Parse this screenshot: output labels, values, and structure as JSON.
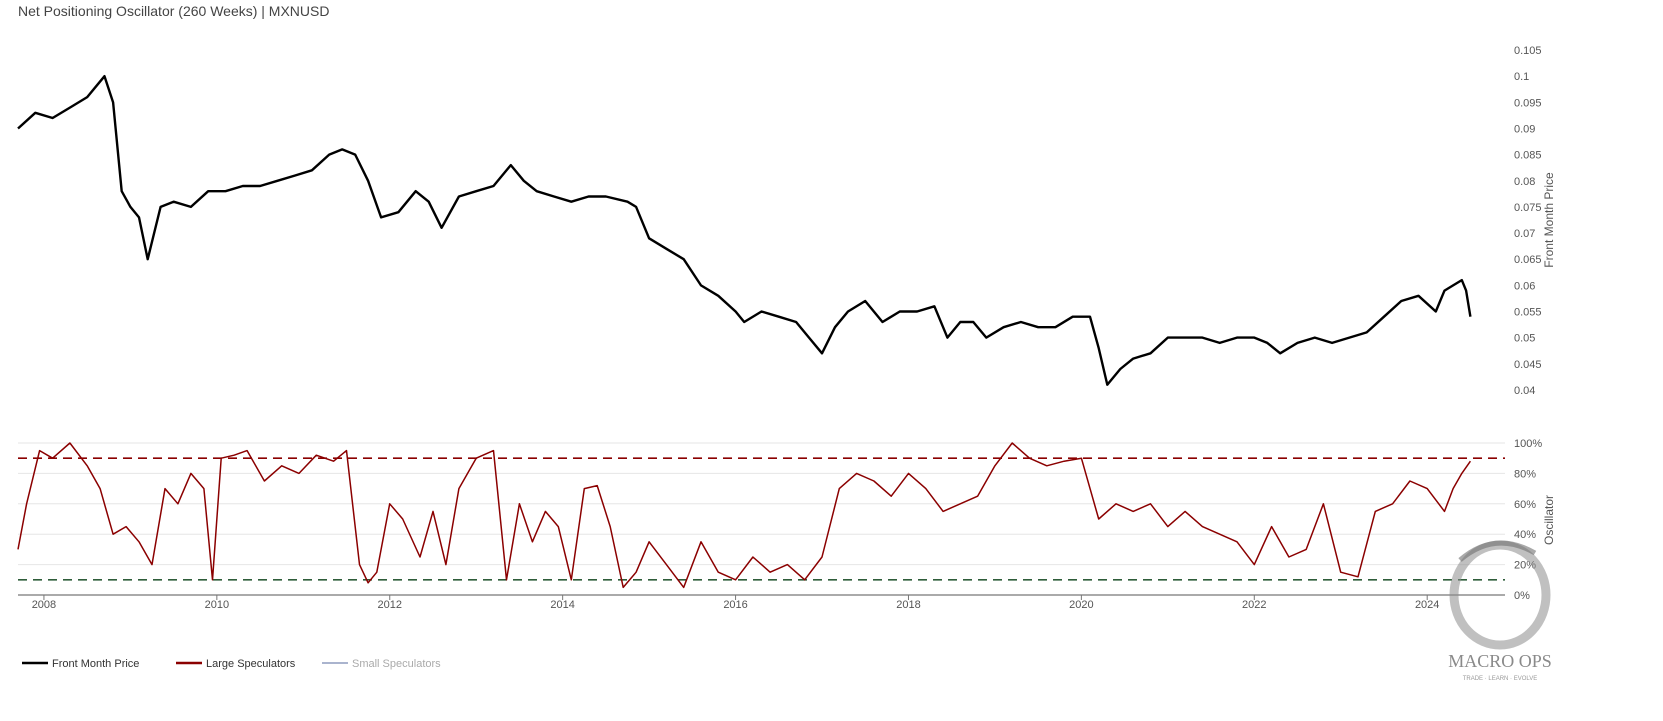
{
  "title": "Net Positioning Oscillator (260 Weeks) | MXNUSD",
  "logo": {
    "text": "MACRO OPS",
    "tagline": "TRADE · LEARN · EVOLVE"
  },
  "legend": [
    {
      "label": "Front Month Price",
      "color": "#000000",
      "active": true
    },
    {
      "label": "Large Speculators",
      "color": "#8b0000",
      "active": true
    },
    {
      "label": "Small Speculators",
      "color": "#8e9bbd",
      "active": false
    }
  ],
  "chart_data": [
    {
      "type": "line",
      "series": [
        {
          "name": "Front Month Price",
          "color": "#000000",
          "x": [
            2007.7,
            2007.9,
            2008.1,
            2008.3,
            2008.5,
            2008.6,
            2008.7,
            2008.8,
            2008.9,
            2009.0,
            2009.1,
            2009.2,
            2009.35,
            2009.5,
            2009.7,
            2009.9,
            2010.1,
            2010.3,
            2010.5,
            2010.7,
            2010.9,
            2011.1,
            2011.3,
            2011.45,
            2011.6,
            2011.75,
            2011.9,
            2012.1,
            2012.3,
            2012.45,
            2012.6,
            2012.8,
            2013.0,
            2013.2,
            2013.4,
            2013.55,
            2013.7,
            2013.9,
            2014.1,
            2014.3,
            2014.5,
            2014.75,
            2014.85,
            2015.0,
            2015.2,
            2015.4,
            2015.6,
            2015.8,
            2016.0,
            2016.1,
            2016.3,
            2016.5,
            2016.7,
            2016.85,
            2017.0,
            2017.15,
            2017.3,
            2017.5,
            2017.7,
            2017.9,
            2018.1,
            2018.3,
            2018.45,
            2018.6,
            2018.75,
            2018.9,
            2019.1,
            2019.3,
            2019.5,
            2019.7,
            2019.9,
            2020.1,
            2020.2,
            2020.3,
            2020.45,
            2020.6,
            2020.8,
            2021.0,
            2021.2,
            2021.4,
            2021.6,
            2021.8,
            2022.0,
            2022.15,
            2022.3,
            2022.5,
            2022.7,
            2022.9,
            2023.1,
            2023.3,
            2023.5,
            2023.7,
            2023.9,
            2024.1,
            2024.2,
            2024.3,
            2024.4,
            2024.45,
            2024.5
          ],
          "y": [
            0.09,
            0.093,
            0.092,
            0.094,
            0.096,
            0.098,
            0.1,
            0.095,
            0.078,
            0.075,
            0.073,
            0.065,
            0.075,
            0.076,
            0.075,
            0.078,
            0.078,
            0.079,
            0.079,
            0.08,
            0.081,
            0.082,
            0.085,
            0.086,
            0.085,
            0.08,
            0.073,
            0.074,
            0.078,
            0.076,
            0.071,
            0.077,
            0.078,
            0.079,
            0.083,
            0.08,
            0.078,
            0.077,
            0.076,
            0.077,
            0.077,
            0.076,
            0.075,
            0.069,
            0.067,
            0.065,
            0.06,
            0.058,
            0.055,
            0.053,
            0.055,
            0.054,
            0.053,
            0.05,
            0.047,
            0.052,
            0.055,
            0.057,
            0.053,
            0.055,
            0.055,
            0.056,
            0.05,
            0.053,
            0.053,
            0.05,
            0.052,
            0.053,
            0.052,
            0.052,
            0.054,
            0.054,
            0.048,
            0.041,
            0.044,
            0.046,
            0.047,
            0.05,
            0.05,
            0.05,
            0.049,
            0.05,
            0.05,
            0.049,
            0.047,
            0.049,
            0.05,
            0.049,
            0.05,
            0.051,
            0.054,
            0.057,
            0.058,
            0.055,
            0.059,
            0.06,
            0.061,
            0.059,
            0.054
          ]
        }
      ],
      "y_ticks": [
        "0.04",
        "0.045",
        "0.05",
        "0.055",
        "0.06",
        "0.065",
        "0.07",
        "0.075",
        "0.08",
        "0.085",
        "0.09",
        "0.095",
        "0.1",
        "0.105"
      ],
      "ylim": [
        0.0375,
        0.1075
      ],
      "ylabel": "Front Month Price",
      "grid": false
    },
    {
      "type": "line",
      "series": [
        {
          "name": "Large Speculators",
          "color": "#8b0000",
          "x": [
            2007.7,
            2007.8,
            2007.95,
            2008.1,
            2008.3,
            2008.5,
            2008.65,
            2008.8,
            2008.95,
            2009.1,
            2009.25,
            2009.4,
            2009.55,
            2009.7,
            2009.85,
            2009.95,
            2010.05,
            2010.2,
            2010.35,
            2010.55,
            2010.75,
            2010.95,
            2011.15,
            2011.35,
            2011.5,
            2011.65,
            2011.75,
            2011.85,
            2012.0,
            2012.15,
            2012.35,
            2012.5,
            2012.65,
            2012.8,
            2013.0,
            2013.2,
            2013.35,
            2013.5,
            2013.65,
            2013.8,
            2013.95,
            2014.1,
            2014.25,
            2014.4,
            2014.55,
            2014.7,
            2014.85,
            2015.0,
            2015.2,
            2015.4,
            2015.6,
            2015.8,
            2016.0,
            2016.2,
            2016.4,
            2016.6,
            2016.8,
            2017.0,
            2017.2,
            2017.4,
            2017.6,
            2017.8,
            2018.0,
            2018.2,
            2018.4,
            2018.6,
            2018.8,
            2019.0,
            2019.2,
            2019.4,
            2019.6,
            2019.8,
            2020.0,
            2020.2,
            2020.4,
            2020.6,
            2020.8,
            2021.0,
            2021.2,
            2021.4,
            2021.6,
            2021.8,
            2022.0,
            2022.2,
            2022.4,
            2022.6,
            2022.8,
            2023.0,
            2023.2,
            2023.4,
            2023.6,
            2023.8,
            2024.0,
            2024.2,
            2024.3,
            2024.4,
            2024.5
          ],
          "y": [
            30,
            60,
            95,
            90,
            100,
            85,
            70,
            40,
            45,
            35,
            20,
            70,
            60,
            80,
            70,
            10,
            90,
            92,
            95,
            75,
            85,
            80,
            92,
            88,
            95,
            20,
            8,
            15,
            60,
            50,
            25,
            55,
            20,
            70,
            90,
            95,
            10,
            60,
            35,
            55,
            45,
            10,
            70,
            72,
            45,
            5,
            15,
            35,
            20,
            5,
            35,
            15,
            10,
            25,
            15,
            20,
            10,
            25,
            70,
            80,
            75,
            65,
            80,
            70,
            55,
            60,
            65,
            85,
            100,
            90,
            85,
            88,
            90,
            50,
            60,
            55,
            60,
            45,
            55,
            45,
            40,
            35,
            20,
            45,
            25,
            30,
            60,
            15,
            12,
            55,
            60,
            75,
            70,
            55,
            70,
            80,
            88
          ]
        }
      ],
      "reference_lines": [
        {
          "value": 90,
          "color": "#8b0000"
        },
        {
          "value": 10,
          "color": "#2f5d3a"
        }
      ],
      "y_ticks": [
        "0%",
        "20%",
        "40%",
        "60%",
        "80%",
        "100%"
      ],
      "ylim": [
        0,
        100
      ],
      "ylabel": "Oscillator",
      "x_ticks": [
        "2008",
        "2010",
        "2012",
        "2014",
        "2016",
        "2018",
        "2020",
        "2022",
        "2024"
      ],
      "grid": true
    }
  ]
}
